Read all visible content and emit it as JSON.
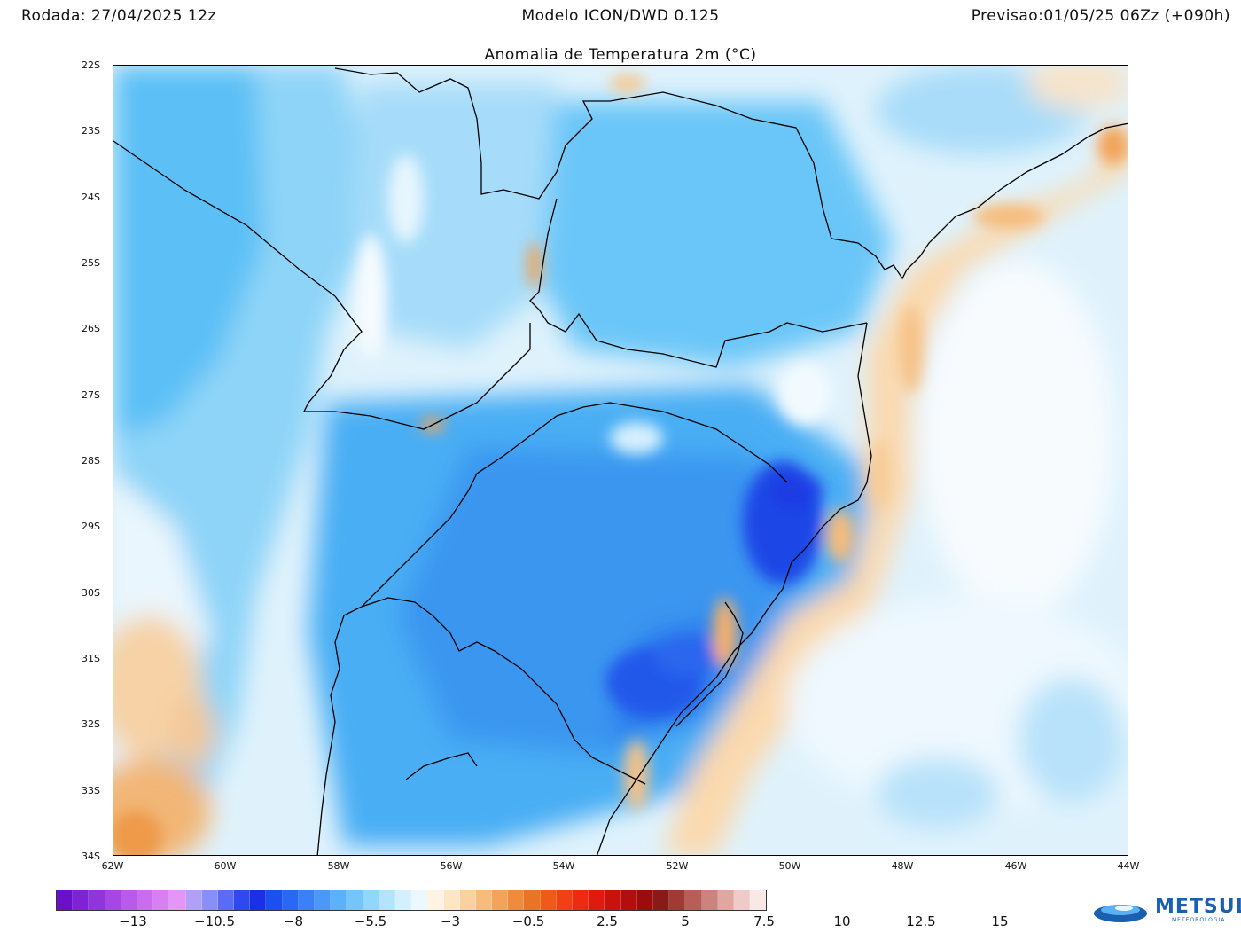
{
  "header": {
    "run": "Rodada: 27/04/2025 12z",
    "model": "Modelo ICON/DWD 0.125",
    "forecast": "Previsao:01/05/25 06Zz (+090h)"
  },
  "map": {
    "title": "Anomalia de Temperatura 2m (°C)",
    "lat_labels": [
      "22S",
      "23S",
      "24S",
      "25S",
      "26S",
      "27S",
      "28S",
      "29S",
      "30S",
      "31S",
      "32S",
      "33S",
      "34S"
    ],
    "lon_labels": [
      "62W",
      "60W",
      "58W",
      "56W",
      "54W",
      "52W",
      "50W",
      "48W",
      "46W",
      "44W"
    ],
    "extent": {
      "lon_min": -62,
      "lon_max": -44,
      "lat_min": -34,
      "lat_max": -22
    }
  },
  "colorbar": {
    "colors": [
      "#6a10c8",
      "#7d22d4",
      "#9034dc",
      "#a646e4",
      "#b85aea",
      "#c96cee",
      "#d880f2",
      "#e496f6",
      "#b0a0f8",
      "#8890f8",
      "#5a6cf6",
      "#3048f0",
      "#1a30e6",
      "#1a50f0",
      "#2868f4",
      "#3a80f6",
      "#4a98f8",
      "#5cb2fa",
      "#74c6fa",
      "#92d6fc",
      "#b4e4fc",
      "#d4f0fe",
      "#ecf8ff",
      "#fff4e4",
      "#fde6c4",
      "#fad2a0",
      "#f6bc7c",
      "#f2a45a",
      "#ee8c3c",
      "#ea7426",
      "#f05a18",
      "#f24014",
      "#ee2a10",
      "#e01a0e",
      "#c8120e",
      "#b20e0e",
      "#9c0c0c",
      "#8a1a18",
      "#a03a34",
      "#b85e58",
      "#cc827e",
      "#e0a6a2",
      "#f0cac8",
      "#fae8e6"
    ],
    "labels": [
      "−13",
      "−10.5",
      "−8",
      "−5.5",
      "−3",
      "−0.5",
      "2.5",
      "5",
      "7.5",
      "10",
      "12.5",
      "15"
    ]
  },
  "logo": {
    "name": "METSUL",
    "sub": "METEOROLOGIA"
  }
}
